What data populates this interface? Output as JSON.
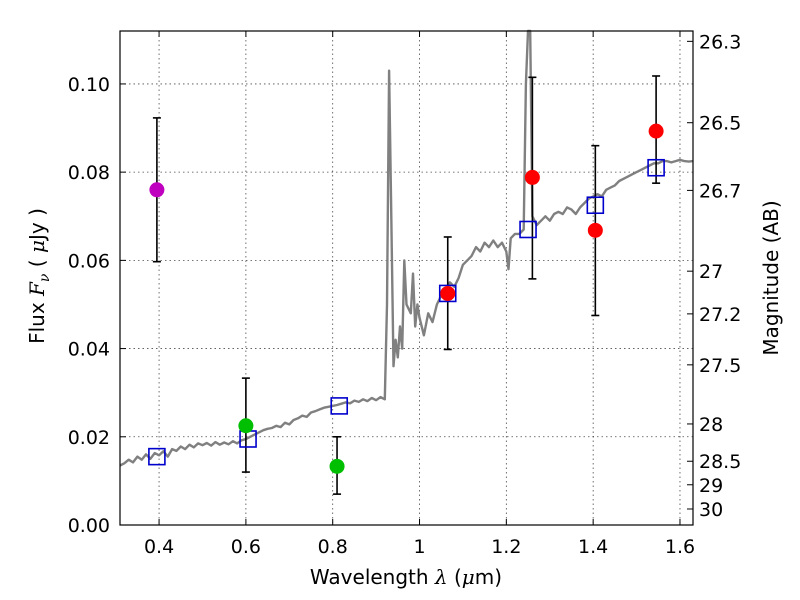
{
  "chart_data": {
    "type": "scatter",
    "xlabel": {
      "prefix": "Wavelength  ",
      "symbol": "λ",
      "suffix": " (",
      "unit_mu": "μ",
      "unit_rest": "m)"
    },
    "ylabel": {
      "prefix": "Flux  ",
      "symbol": "F",
      "subscript": "ν",
      "suffix": "  ( ",
      "unit_mu": "μ",
      "unit_rest": "Jy )"
    },
    "y2label": "Magnitude (AB)",
    "xlim": [
      0.31,
      1.63
    ],
    "ylim": [
      0.0,
      0.112
    ],
    "xticks": [
      {
        "value": 0.4,
        "label": "0.4"
      },
      {
        "value": 0.6,
        "label": "0.6"
      },
      {
        "value": 0.8,
        "label": "0.8"
      },
      {
        "value": 1.0,
        "label": "1"
      },
      {
        "value": 1.2,
        "label": "1.2"
      },
      {
        "value": 1.4,
        "label": "1.4"
      },
      {
        "value": 1.6,
        "label": "1.6"
      }
    ],
    "yticks": [
      {
        "value": 0.0,
        "label": "0.00"
      },
      {
        "value": 0.02,
        "label": "0.02"
      },
      {
        "value": 0.04,
        "label": "0.04"
      },
      {
        "value": 0.06,
        "label": "0.06"
      },
      {
        "value": 0.08,
        "label": "0.08"
      },
      {
        "value": 0.1,
        "label": "0.10"
      }
    ],
    "magnitude_ticks": [
      {
        "mag": 26.3,
        "label": "26.3"
      },
      {
        "mag": 26.5,
        "label": "26.5"
      },
      {
        "mag": 26.7,
        "label": "26.7"
      },
      {
        "mag": 27.0,
        "label": "27"
      },
      {
        "mag": 27.2,
        "label": "27.2"
      },
      {
        "mag": 27.5,
        "label": "27.5"
      },
      {
        "mag": 28.0,
        "label": "28"
      },
      {
        "mag": 28.5,
        "label": "28.5"
      },
      {
        "mag": 29.0,
        "label": "29"
      },
      {
        "mag": 30.0,
        "label": "30"
      }
    ],
    "grid": true,
    "colors": {
      "spectrum": "#808080",
      "model_box": "#0000cc",
      "errorbar": "#000000",
      "purple": "#bf00bf",
      "green": "#00bf00",
      "red": "#ff0000"
    },
    "spectrum": [
      [
        0.31,
        0.0135
      ],
      [
        0.32,
        0.014
      ],
      [
        0.33,
        0.0148
      ],
      [
        0.34,
        0.0142
      ],
      [
        0.35,
        0.0155
      ],
      [
        0.36,
        0.0148
      ],
      [
        0.37,
        0.016
      ],
      [
        0.38,
        0.015
      ],
      [
        0.39,
        0.0163
      ],
      [
        0.4,
        0.0158
      ],
      [
        0.41,
        0.0167
      ],
      [
        0.42,
        0.0155
      ],
      [
        0.43,
        0.0172
      ],
      [
        0.44,
        0.0168
      ],
      [
        0.45,
        0.0178
      ],
      [
        0.46,
        0.0172
      ],
      [
        0.47,
        0.0182
      ],
      [
        0.48,
        0.0176
      ],
      [
        0.49,
        0.0185
      ],
      [
        0.5,
        0.0181
      ],
      [
        0.51,
        0.0186
      ],
      [
        0.52,
        0.018
      ],
      [
        0.53,
        0.0188
      ],
      [
        0.54,
        0.0182
      ],
      [
        0.55,
        0.0187
      ],
      [
        0.56,
        0.0183
      ],
      [
        0.57,
        0.019
      ],
      [
        0.58,
        0.0185
      ],
      [
        0.59,
        0.0192
      ],
      [
        0.6,
        0.0195
      ],
      [
        0.61,
        0.02
      ],
      [
        0.62,
        0.0205
      ],
      [
        0.63,
        0.021
      ],
      [
        0.64,
        0.0215
      ],
      [
        0.65,
        0.0218
      ],
      [
        0.66,
        0.022
      ],
      [
        0.67,
        0.0225
      ],
      [
        0.68,
        0.0222
      ],
      [
        0.69,
        0.0232
      ],
      [
        0.7,
        0.0228
      ],
      [
        0.71,
        0.0238
      ],
      [
        0.72,
        0.0242
      ],
      [
        0.73,
        0.0248
      ],
      [
        0.74,
        0.0245
      ],
      [
        0.75,
        0.0255
      ],
      [
        0.76,
        0.0258
      ],
      [
        0.77,
        0.0262
      ],
      [
        0.78,
        0.0266
      ],
      [
        0.79,
        0.0268
      ],
      [
        0.8,
        0.027
      ],
      [
        0.81,
        0.0272
      ],
      [
        0.82,
        0.0275
      ],
      [
        0.83,
        0.0278
      ],
      [
        0.84,
        0.0276
      ],
      [
        0.85,
        0.0282
      ],
      [
        0.86,
        0.0279
      ],
      [
        0.87,
        0.0285
      ],
      [
        0.88,
        0.0281
      ],
      [
        0.89,
        0.0288
      ],
      [
        0.9,
        0.0283
      ],
      [
        0.91,
        0.029
      ],
      [
        0.92,
        0.0285
      ],
      [
        0.925,
        0.05
      ],
      [
        0.93,
        0.103
      ],
      [
        0.935,
        0.07
      ],
      [
        0.94,
        0.036
      ],
      [
        0.945,
        0.042
      ],
      [
        0.95,
        0.038
      ],
      [
        0.955,
        0.045
      ],
      [
        0.96,
        0.04
      ],
      [
        0.965,
        0.06
      ],
      [
        0.97,
        0.05
      ],
      [
        0.98,
        0.048
      ],
      [
        0.985,
        0.057
      ],
      [
        0.99,
        0.045
      ],
      [
        0.995,
        0.05
      ],
      [
        1.0,
        0.047
      ],
      [
        1.01,
        0.043
      ],
      [
        1.02,
        0.048
      ],
      [
        1.03,
        0.046
      ],
      [
        1.04,
        0.05
      ],
      [
        1.05,
        0.052
      ],
      [
        1.06,
        0.053
      ],
      [
        1.07,
        0.055
      ],
      [
        1.08,
        0.054
      ],
      [
        1.09,
        0.056
      ],
      [
        1.1,
        0.059
      ],
      [
        1.11,
        0.06
      ],
      [
        1.12,
        0.061
      ],
      [
        1.13,
        0.063
      ],
      [
        1.14,
        0.062
      ],
      [
        1.15,
        0.064
      ],
      [
        1.16,
        0.063
      ],
      [
        1.17,
        0.0645
      ],
      [
        1.18,
        0.063
      ],
      [
        1.19,
        0.064
      ],
      [
        1.2,
        0.062
      ],
      [
        1.205,
        0.058
      ],
      [
        1.21,
        0.065
      ],
      [
        1.22,
        0.066
      ],
      [
        1.23,
        0.066
      ],
      [
        1.24,
        0.067
      ],
      [
        1.245,
        0.1
      ],
      [
        1.25,
        0.112
      ],
      [
        1.255,
        0.112
      ],
      [
        1.26,
        0.07
      ],
      [
        1.27,
        0.068
      ],
      [
        1.28,
        0.069
      ],
      [
        1.29,
        0.07
      ],
      [
        1.3,
        0.069
      ],
      [
        1.31,
        0.0705
      ],
      [
        1.32,
        0.071
      ],
      [
        1.33,
        0.0705
      ],
      [
        1.34,
        0.072
      ],
      [
        1.35,
        0.0715
      ],
      [
        1.36,
        0.0705
      ],
      [
        1.37,
        0.072
      ],
      [
        1.38,
        0.073
      ],
      [
        1.39,
        0.074
      ],
      [
        1.4,
        0.0745
      ],
      [
        1.41,
        0.075
      ],
      [
        1.42,
        0.0745
      ],
      [
        1.43,
        0.076
      ],
      [
        1.44,
        0.0765
      ],
      [
        1.45,
        0.077
      ],
      [
        1.46,
        0.078
      ],
      [
        1.47,
        0.0785
      ],
      [
        1.48,
        0.079
      ],
      [
        1.49,
        0.0795
      ],
      [
        1.5,
        0.08
      ],
      [
        1.51,
        0.0805
      ],
      [
        1.52,
        0.081
      ],
      [
        1.53,
        0.0815
      ],
      [
        1.54,
        0.082
      ],
      [
        1.55,
        0.082
      ],
      [
        1.56,
        0.0825
      ],
      [
        1.57,
        0.0825
      ],
      [
        1.58,
        0.0822
      ],
      [
        1.59,
        0.0825
      ],
      [
        1.6,
        0.0828
      ],
      [
        1.61,
        0.0825
      ],
      [
        1.62,
        0.0824
      ],
      [
        1.63,
        0.0825
      ]
    ],
    "model_points": [
      {
        "x": 0.395,
        "y": 0.0155
      },
      {
        "x": 0.605,
        "y": 0.0195
      },
      {
        "x": 0.815,
        "y": 0.027
      },
      {
        "x": 1.065,
        "y": 0.0525
      },
      {
        "x": 1.25,
        "y": 0.067
      },
      {
        "x": 1.405,
        "y": 0.0725
      },
      {
        "x": 1.545,
        "y": 0.081
      }
    ],
    "observed_points": [
      {
        "x": 0.395,
        "y": 0.076,
        "yerr_low": 0.0597,
        "yerr_high": 0.0923,
        "color": "purple"
      },
      {
        "x": 0.6,
        "y": 0.0225,
        "yerr_low": 0.012,
        "yerr_high": 0.0333,
        "color": "green"
      },
      {
        "x": 0.81,
        "y": 0.0133,
        "yerr_low": 0.007,
        "yerr_high": 0.02,
        "color": "green"
      },
      {
        "x": 1.065,
        "y": 0.0525,
        "yerr_low": 0.0398,
        "yerr_high": 0.0653,
        "color": "red"
      },
      {
        "x": 1.26,
        "y": 0.0788,
        "yerr_low": 0.0558,
        "yerr_high": 0.1015,
        "color": "red"
      },
      {
        "x": 1.405,
        "y": 0.0668,
        "yerr_low": 0.0475,
        "yerr_high": 0.086,
        "color": "red"
      },
      {
        "x": 1.545,
        "y": 0.0893,
        "yerr_low": 0.0775,
        "yerr_high": 0.1018,
        "color": "red"
      }
    ]
  }
}
